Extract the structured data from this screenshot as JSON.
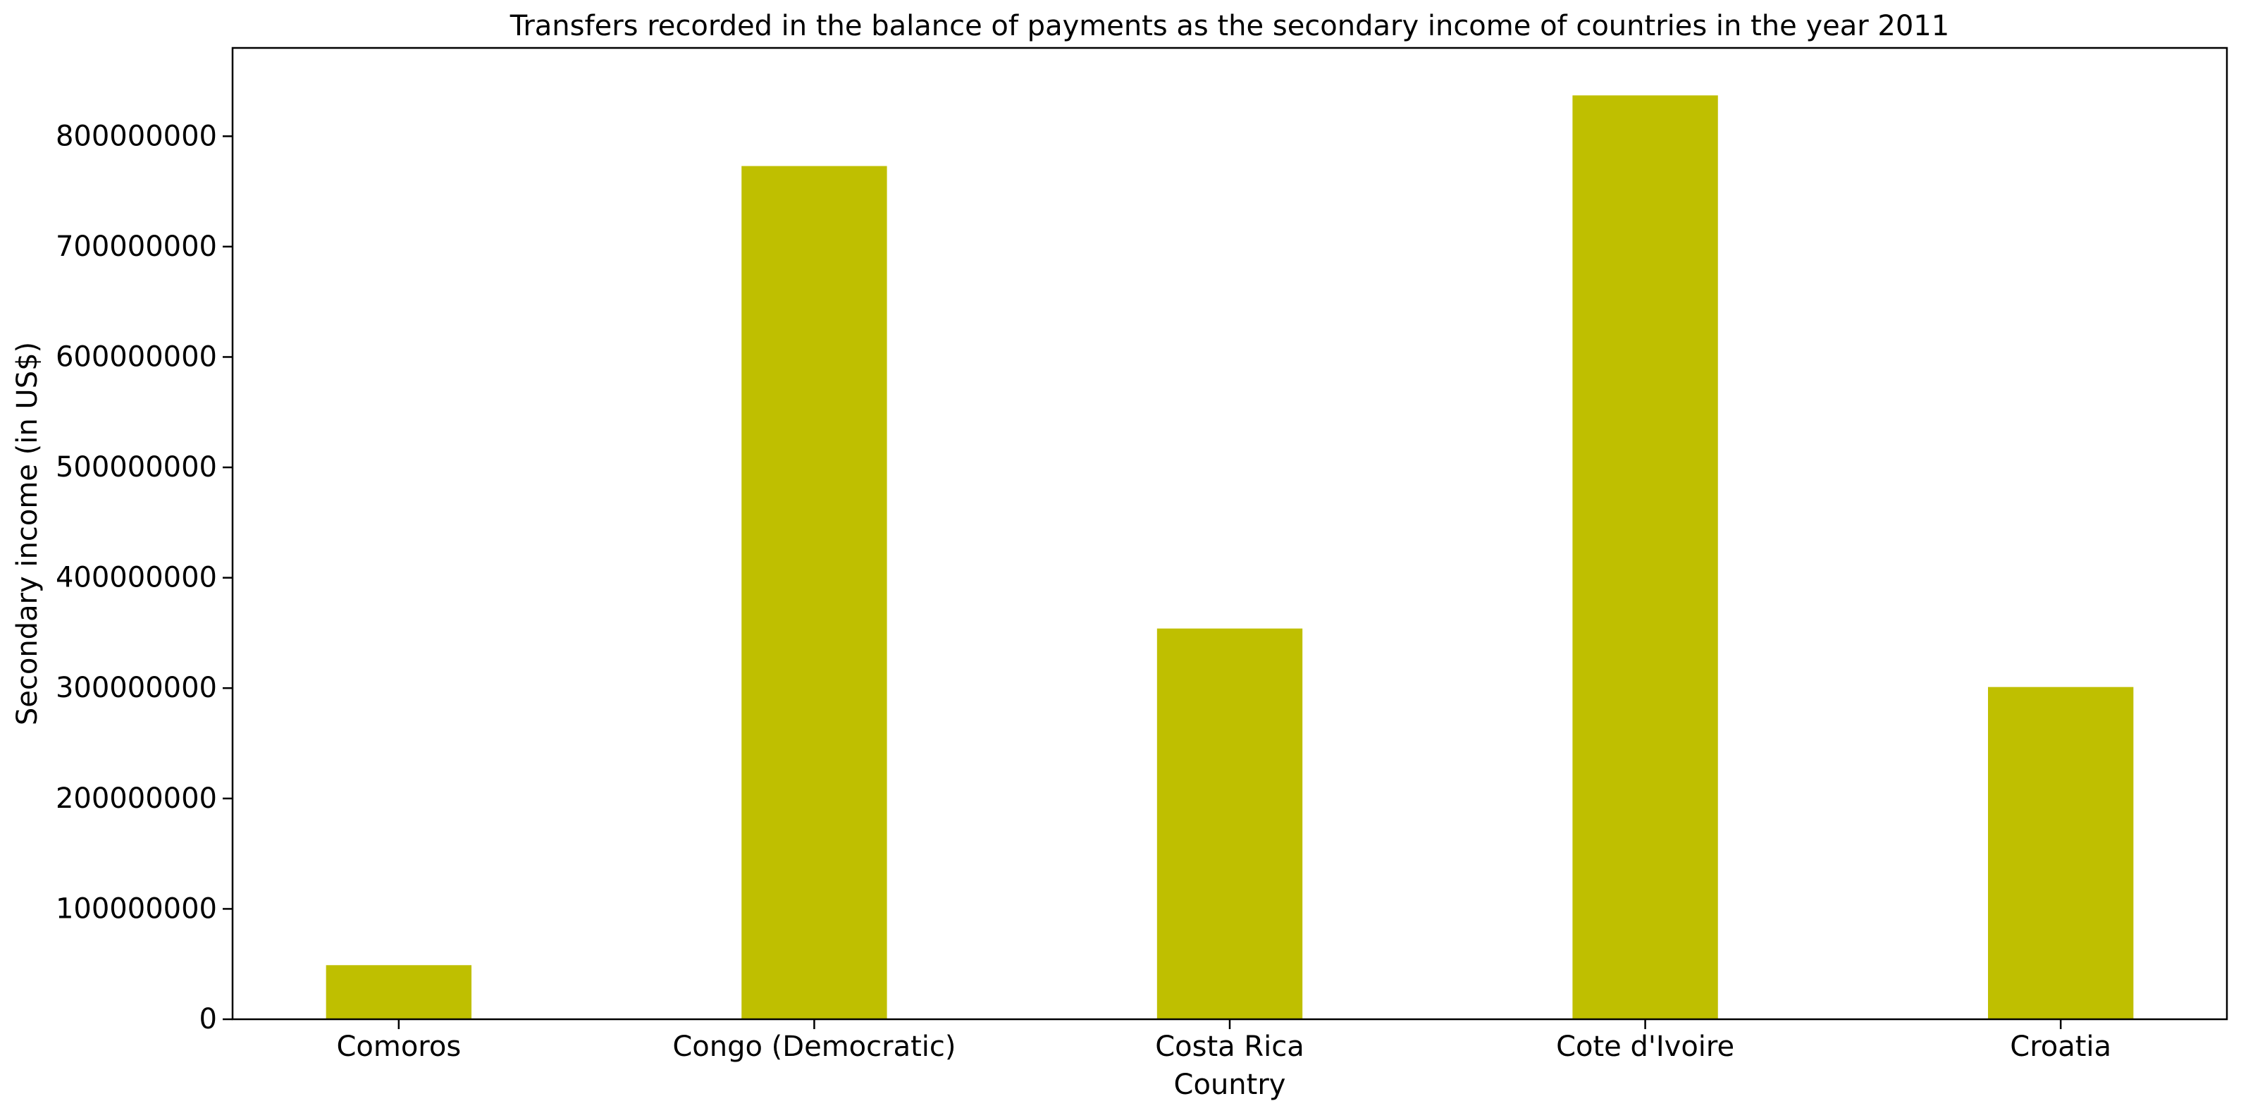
{
  "chart_data": {
    "type": "bar",
    "title": "Transfers recorded in the balance of payments as the secondary income of countries in the year 2011",
    "xlabel": "Country",
    "ylabel": "Secondary income (in US$)",
    "categories": [
      "Comoros",
      "Congo (Democratic)",
      "Costa Rica",
      "Cote d'Ivoire",
      "Croatia"
    ],
    "values": [
      49000000,
      773000000,
      354000000,
      837000000,
      301000000
    ],
    "ylim": [
      0,
      880000000
    ],
    "yticks": [
      0,
      100000000,
      200000000,
      300000000,
      400000000,
      500000000,
      600000000,
      700000000,
      800000000
    ],
    "ytick_labels": [
      "0",
      "100000000",
      "200000000",
      "300000000",
      "400000000",
      "500000000",
      "600000000",
      "700000000",
      "800000000"
    ],
    "bar_color": "#bfbf00",
    "grid": false,
    "legend": false
  }
}
